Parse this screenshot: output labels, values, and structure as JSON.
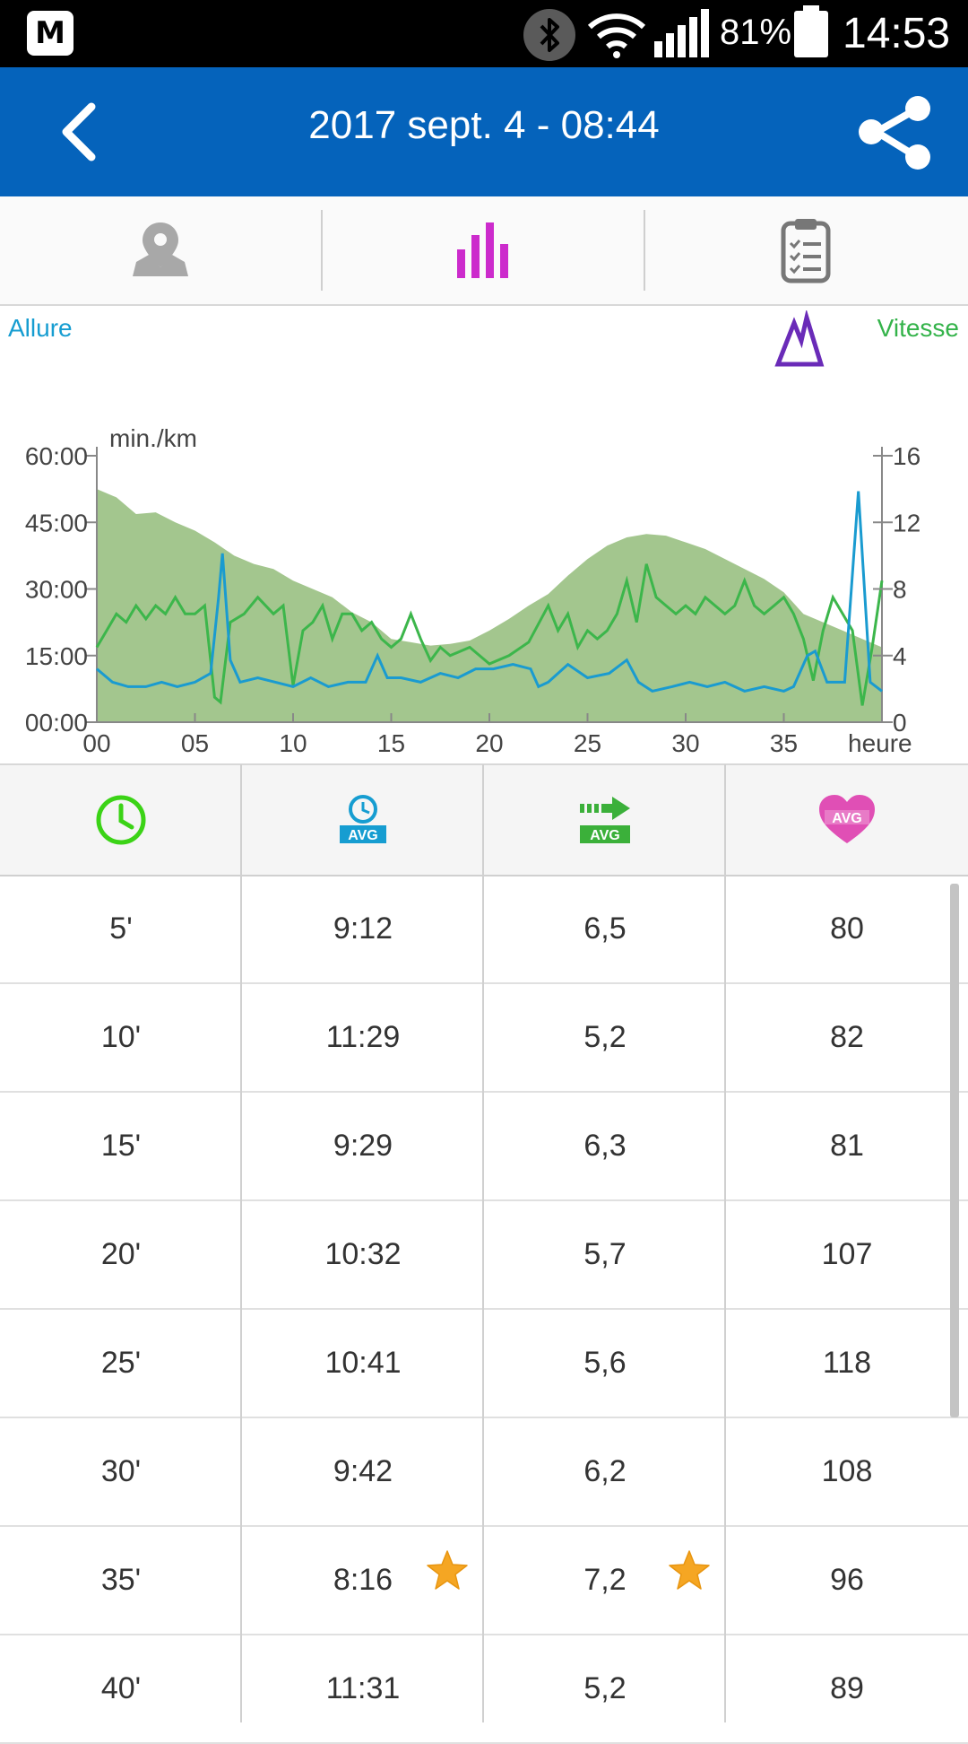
{
  "status_bar": {
    "app_icon_letter": "M",
    "battery_percent": "81%",
    "time": "14:53",
    "icons": [
      "app-notification-icon",
      "bluetooth-icon",
      "wifi-icon",
      "signal-icon",
      "battery-icon"
    ]
  },
  "header": {
    "title": "2017 sept. 4 - 08:44",
    "back_icon": "chevron-left-icon",
    "share_icon": "share-icon",
    "background": "#0563bb"
  },
  "tabs": [
    {
      "name": "map",
      "icon": "map-pin-icon",
      "active": false
    },
    {
      "name": "chart",
      "icon": "bar-chart-icon",
      "active": true,
      "color": "#cc2bcc"
    },
    {
      "name": "details",
      "icon": "clipboard-icon",
      "active": false
    }
  ],
  "chart": {
    "legend_left": "Allure",
    "legend_right": "Vitesse",
    "altitude_toggle_icon": "mountain-icon",
    "unit_label": "min./km",
    "x_unit_label": "heure"
  },
  "chart_data": {
    "type": "line",
    "x_ticks": [
      "00",
      "05",
      "10",
      "15",
      "20",
      "25",
      "30",
      "35"
    ],
    "xlim": [
      0,
      40
    ],
    "left_axis": {
      "label": "min./km",
      "ticks": [
        "00:00",
        "15:00",
        "30:00",
        "45:00",
        "60:00"
      ],
      "range": [
        0,
        60
      ]
    },
    "right_axis": {
      "label": "",
      "ticks": [
        "0",
        "4",
        "8",
        "12",
        "16"
      ],
      "range": [
        0,
        16
      ]
    },
    "colors": {
      "allure": "#1a9bd0",
      "vitesse": "#3cb64b",
      "altitude": "#a3c68e"
    },
    "series": [
      {
        "name": "Allure",
        "axis": "left",
        "x": [
          0,
          0.8,
          1.6,
          2.5,
          3.3,
          4.1,
          5,
          5.8,
          6.2,
          6.4,
          6.8,
          7.3,
          8.2,
          9.1,
          10,
          10.9,
          11.8,
          12.8,
          13.7,
          14.3,
          14.8,
          15.5,
          16.5,
          17.5,
          18.4,
          19.3,
          20.2,
          21.2,
          22.1,
          22.5,
          23,
          24,
          25,
          26.1,
          27,
          27.6,
          28.3,
          29.3,
          30.2,
          31.1,
          32,
          33,
          34,
          35,
          35.5,
          36.2,
          36.6,
          37.2,
          38.1,
          38.8,
          39.4,
          40
        ],
        "y": [
          12,
          9,
          8,
          8,
          9,
          8,
          9,
          11,
          28,
          38,
          14,
          9,
          10,
          9,
          8,
          10,
          8,
          9,
          9,
          15,
          10,
          10,
          9,
          11,
          10,
          12,
          12,
          13,
          12,
          8,
          9,
          13,
          10,
          11,
          14,
          9,
          7,
          8,
          9,
          8,
          9,
          7,
          8,
          7,
          8,
          15,
          16,
          9,
          9,
          52,
          9,
          7
        ]
      },
      {
        "name": "Vitesse",
        "axis": "right",
        "x": [
          0,
          0.5,
          1,
          1.5,
          2,
          2.5,
          3,
          3.5,
          4,
          4.5,
          5,
          5.5,
          6,
          6.3,
          6.8,
          7.5,
          8.2,
          9,
          9.5,
          10,
          10.5,
          11,
          11.5,
          12,
          12.5,
          13,
          13.5,
          14,
          14.5,
          15,
          15.5,
          16,
          16.5,
          17,
          17.5,
          18,
          19,
          20,
          21,
          22,
          23,
          23.5,
          24,
          24.5,
          25,
          25.5,
          26,
          26.5,
          27,
          27.5,
          28,
          28.5,
          29,
          29.5,
          30,
          30.5,
          31,
          31.5,
          32,
          32.5,
          33,
          33.5,
          34,
          34.5,
          35,
          35.5,
          36,
          36.5,
          37,
          37.5,
          38,
          38.5,
          39,
          39.5,
          40
        ],
        "y": [
          4.5,
          5.5,
          6.5,
          6,
          7,
          6.2,
          7,
          6.5,
          7.5,
          6.5,
          6.5,
          7,
          1.5,
          1.2,
          6,
          6.5,
          7.5,
          6.5,
          7,
          2.2,
          5.5,
          6,
          7,
          5,
          6.5,
          6.5,
          5.5,
          6,
          5,
          4.5,
          5,
          6.5,
          5,
          3.7,
          4.5,
          4,
          4.5,
          3.5,
          4,
          4.8,
          7,
          5.5,
          6.5,
          4.5,
          5.5,
          5,
          5.5,
          6.5,
          8.5,
          6,
          9.5,
          7.5,
          7,
          6.5,
          7,
          6.5,
          7.5,
          7,
          6.5,
          7,
          8.5,
          7,
          6.5,
          7,
          7.5,
          6.5,
          5,
          2.5,
          5.5,
          7.5,
          6.5,
          5.5,
          1,
          4.5,
          8.5
        ]
      },
      {
        "name": "Altitude",
        "axis": "hidden",
        "x": [
          0,
          1,
          2,
          3,
          4,
          5,
          6,
          7,
          8,
          9,
          10,
          11,
          12,
          13,
          14,
          15,
          16,
          17,
          18,
          19,
          20,
          21,
          22,
          23,
          24,
          25,
          26,
          27,
          28,
          29,
          30,
          31,
          32,
          33,
          34,
          35,
          36,
          37,
          38,
          39,
          40
        ],
        "y": [
          14,
          13.5,
          12.5,
          12.6,
          12,
          11.5,
          10.8,
          10,
          9.5,
          9.2,
          8.5,
          8,
          7.5,
          6.6,
          6,
          5,
          4.8,
          4.6,
          4.7,
          4.9,
          5.5,
          6.2,
          7,
          7.7,
          8.8,
          9.8,
          10.6,
          11.1,
          11.3,
          11.2,
          10.8,
          10.4,
          9.8,
          9.2,
          8.6,
          7.8,
          6.5,
          6,
          5.5,
          5,
          4.5
        ]
      }
    ]
  },
  "table": {
    "header_icons": [
      "clock-icon",
      "avg-pace-icon",
      "avg-speed-icon",
      "avg-heart-rate-icon"
    ],
    "rows": [
      {
        "time": "5'",
        "pace": "9:12",
        "speed": "6,5",
        "hr": "80",
        "pace_star": false,
        "speed_star": false
      },
      {
        "time": "10'",
        "pace": "11:29",
        "speed": "5,2",
        "hr": "82",
        "pace_star": false,
        "speed_star": false
      },
      {
        "time": "15'",
        "pace": "9:29",
        "speed": "6,3",
        "hr": "81",
        "pace_star": false,
        "speed_star": false
      },
      {
        "time": "20'",
        "pace": "10:32",
        "speed": "5,7",
        "hr": "107",
        "pace_star": false,
        "speed_star": false
      },
      {
        "time": "25'",
        "pace": "10:41",
        "speed": "5,6",
        "hr": "118",
        "pace_star": false,
        "speed_star": false
      },
      {
        "time": "30'",
        "pace": "9:42",
        "speed": "6,2",
        "hr": "108",
        "pace_star": false,
        "speed_star": false
      },
      {
        "time": "35'",
        "pace": "8:16",
        "speed": "7,2",
        "hr": "96",
        "pace_star": true,
        "speed_star": true
      },
      {
        "time": "40'",
        "pace": "11:31",
        "speed": "5,2",
        "hr": "89",
        "pace_star": false,
        "speed_star": false
      }
    ]
  }
}
